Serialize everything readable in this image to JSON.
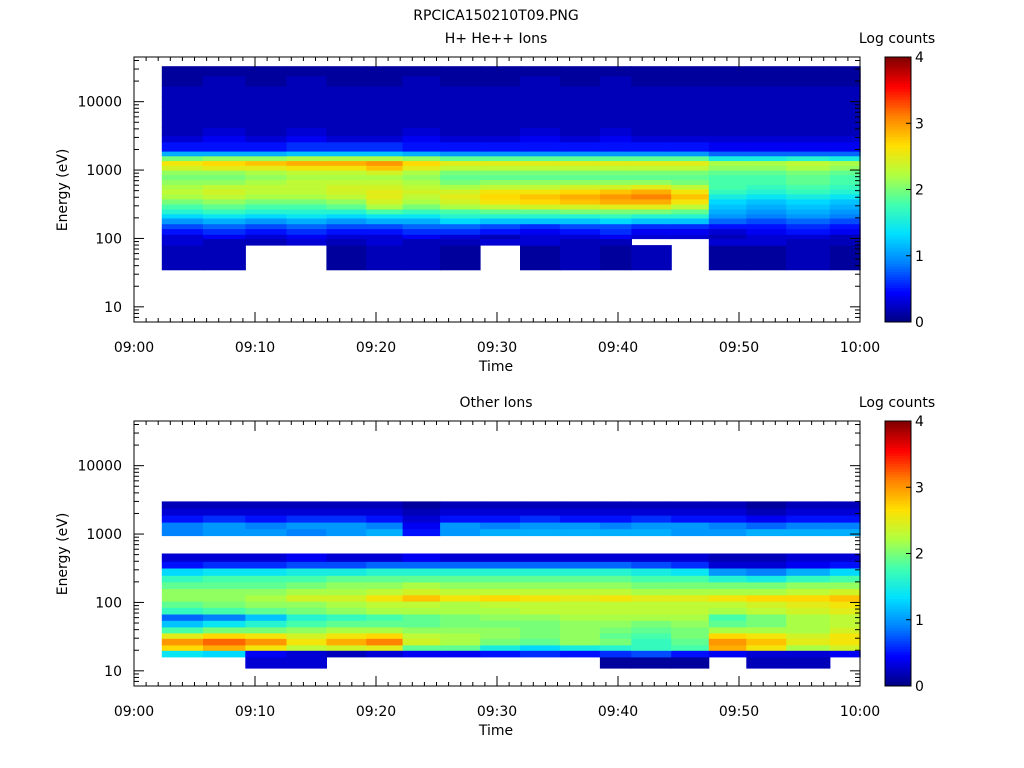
{
  "page": {
    "title": "RPCICA150210T09.PNG"
  },
  "colormap": {
    "stops": [
      "#00007f",
      "#0000ff",
      "#0080ff",
      "#00e0ff",
      "#40ffb0",
      "#b0ff40",
      "#ffe000",
      "#ff8000",
      "#ff0000",
      "#7f0000"
    ]
  },
  "chart_data": [
    {
      "type": "heatmap",
      "title": "H+ He++ Ions",
      "xlabel": "Time",
      "ylabel": "Energy (eV)",
      "x_ticks": [
        "09:00",
        "09:10",
        "09:20",
        "09:30",
        "09:40",
        "09:50",
        "10:00"
      ],
      "x_range_min": [
        0,
        60
      ],
      "y_scale": "log",
      "y_ticks": [
        "10",
        "100",
        "1000",
        "10000"
      ],
      "y_range": [
        6,
        45000
      ],
      "colorbar": {
        "label": "Log counts",
        "range": [
          0,
          4
        ],
        "ticks": [
          "0",
          "1",
          "2",
          "3",
          "4"
        ]
      },
      "time_bins_min": [
        2.3,
        5.7,
        9.2,
        12.6,
        15.9,
        19.2,
        22.2,
        25.3,
        28.6,
        31.9,
        35.2,
        38.5,
        41.1,
        44.4,
        47.5,
        50.6,
        53.9,
        57.5,
        60
      ],
      "energy_bins_ev": [
        11.0,
        35,
        80,
        100,
        115,
        140,
        165,
        200,
        230,
        270,
        320,
        380,
        450,
        530,
        620,
        730,
        860,
        1000,
        1180,
        1380,
        1620,
        1900,
        2600,
        3200,
        4200,
        6000,
        8500,
        12000,
        17000,
        24000,
        33000,
        40000
      ],
      "values": [
        [
          0,
          0,
          0,
          0,
          0,
          0,
          0,
          0,
          0,
          0,
          0,
          0,
          0,
          0,
          0,
          0,
          0,
          0
        ],
        [
          0.2,
          0.2,
          0,
          0,
          0.1,
          0.2,
          0.2,
          0.1,
          0,
          0.1,
          0.2,
          0.1,
          0.2,
          0,
          0.1,
          0.1,
          0.2,
          0.1
        ],
        [
          0.3,
          0.2,
          0.2,
          0.3,
          0.2,
          0.3,
          0.2,
          0.2,
          0.3,
          0.3,
          0.2,
          0.2,
          0,
          0,
          0.3,
          0.3,
          0.2,
          0.2
        ],
        [
          0.3,
          0.4,
          0.3,
          0.4,
          0.3,
          0.3,
          0.4,
          0.3,
          0.2,
          0.3,
          0.3,
          0.4,
          0.3,
          0.3,
          0.2,
          0.3,
          0.3,
          0.2
        ],
        [
          0.5,
          0.6,
          0.5,
          0.6,
          0.5,
          0.5,
          0.6,
          0.6,
          0.5,
          0.4,
          0.5,
          0.6,
          0.4,
          0.4,
          0.3,
          0.4,
          0.5,
          0.4
        ],
        [
          0.7,
          0.8,
          0.7,
          0.8,
          0.7,
          0.7,
          0.8,
          0.8,
          0.7,
          0.6,
          0.7,
          0.7,
          0.6,
          0.6,
          0.5,
          0.5,
          0.6,
          0.5
        ],
        [
          1.0,
          1.1,
          1.0,
          1.1,
          1.0,
          1.1,
          1.1,
          1.3,
          1.2,
          1.2,
          1.2,
          1.3,
          1.2,
          1.2,
          0.8,
          0.7,
          0.8,
          0.7
        ],
        [
          1.3,
          1.4,
          1.3,
          1.4,
          1.3,
          1.4,
          1.4,
          1.6,
          1.6,
          1.6,
          1.6,
          1.7,
          1.6,
          1.6,
          1.0,
          0.9,
          1.0,
          0.9
        ],
        [
          1.6,
          1.7,
          1.6,
          1.6,
          1.6,
          1.8,
          1.7,
          1.8,
          1.9,
          1.9,
          2.0,
          2.0,
          2.0,
          1.9,
          1.1,
          1.0,
          1.1,
          1.0
        ],
        [
          1.8,
          1.9,
          1.8,
          1.8,
          1.9,
          2.2,
          2.0,
          2.2,
          2.3,
          2.4,
          2.4,
          2.5,
          2.5,
          2.3,
          1.2,
          1.1,
          1.2,
          1.1
        ],
        [
          2.0,
          2.1,
          2.0,
          2.0,
          2.1,
          2.4,
          2.2,
          2.4,
          2.6,
          2.7,
          2.8,
          2.9,
          2.9,
          2.6,
          1.3,
          1.2,
          1.3,
          1.2
        ],
        [
          2.2,
          2.3,
          2.2,
          2.2,
          2.3,
          2.5,
          2.3,
          2.5,
          2.7,
          2.8,
          2.9,
          3.0,
          3.1,
          2.8,
          1.5,
          1.4,
          1.5,
          1.4
        ],
        [
          2.3,
          2.4,
          2.3,
          2.3,
          2.4,
          2.5,
          2.4,
          2.4,
          2.6,
          2.6,
          2.7,
          2.8,
          2.9,
          2.6,
          1.7,
          1.6,
          1.7,
          1.6
        ],
        [
          2.2,
          2.3,
          2.3,
          2.3,
          2.4,
          2.4,
          2.3,
          2.2,
          2.3,
          2.3,
          2.4,
          2.4,
          2.5,
          2.3,
          1.8,
          1.7,
          1.8,
          1.7
        ],
        [
          2.1,
          2.1,
          2.2,
          2.3,
          2.3,
          2.3,
          2.2,
          2.0,
          2.1,
          2.1,
          2.1,
          2.1,
          2.1,
          2.0,
          1.8,
          1.8,
          1.9,
          1.8
        ],
        [
          2.0,
          2.0,
          2.1,
          2.2,
          2.2,
          2.2,
          2.1,
          1.9,
          1.9,
          1.9,
          1.9,
          1.9,
          1.9,
          1.9,
          1.8,
          1.8,
          1.9,
          1.8
        ],
        [
          2.1,
          2.1,
          2.2,
          2.3,
          2.3,
          2.4,
          2.2,
          2.0,
          2.0,
          2.0,
          2.0,
          2.0,
          2.0,
          2.0,
          1.9,
          1.9,
          2.0,
          1.9
        ],
        [
          2.4,
          2.5,
          2.5,
          2.6,
          2.6,
          2.8,
          2.5,
          2.3,
          2.3,
          2.3,
          2.3,
          2.3,
          2.3,
          2.3,
          2.1,
          2.1,
          2.2,
          2.1
        ],
        [
          2.6,
          2.7,
          2.8,
          2.9,
          2.9,
          3.0,
          2.7,
          2.5,
          2.5,
          2.5,
          2.5,
          2.5,
          2.5,
          2.5,
          2.2,
          2.2,
          2.3,
          2.2
        ],
        [
          2.0,
          2.1,
          2.1,
          2.2,
          2.2,
          2.2,
          2.1,
          1.9,
          1.9,
          1.9,
          1.9,
          1.9,
          1.9,
          1.9,
          1.5,
          1.5,
          1.6,
          1.5
        ],
        [
          1.1,
          1.1,
          1.1,
          1.2,
          1.2,
          1.2,
          1.1,
          1.0,
          1.0,
          1.0,
          1.0,
          1.0,
          1.0,
          1.0,
          0.8,
          0.8,
          0.8,
          0.8
        ],
        [
          0.5,
          0.5,
          0.5,
          0.6,
          0.6,
          0.6,
          0.5,
          0.5,
          0.5,
          0.5,
          0.5,
          0.5,
          0.5,
          0.5,
          0.4,
          0.4,
          0.4,
          0.4
        ],
        [
          0.3,
          0.4,
          0.3,
          0.4,
          0.3,
          0.3,
          0.4,
          0.3,
          0.3,
          0.4,
          0.3,
          0.4,
          0.3,
          0.3,
          0.3,
          0.3,
          0.3,
          0.3
        ],
        [
          0.2,
          0.3,
          0.2,
          0.3,
          0.2,
          0.2,
          0.3,
          0.2,
          0.2,
          0.3,
          0.2,
          0.3,
          0.2,
          0.2,
          0.2,
          0.2,
          0.2,
          0.2
        ],
        [
          0.2,
          0.2,
          0.2,
          0.2,
          0.2,
          0.2,
          0.2,
          0.2,
          0.2,
          0.2,
          0.2,
          0.2,
          0.2,
          0.2,
          0.2,
          0.2,
          0.2,
          0.2
        ],
        [
          0.2,
          0.2,
          0.2,
          0.2,
          0.2,
          0.2,
          0.2,
          0.2,
          0.2,
          0.2,
          0.2,
          0.2,
          0.2,
          0.2,
          0.2,
          0.2,
          0.2,
          0.2
        ],
        [
          0.2,
          0.2,
          0.2,
          0.2,
          0.2,
          0.2,
          0.2,
          0.2,
          0.2,
          0.2,
          0.2,
          0.2,
          0.2,
          0.2,
          0.2,
          0.2,
          0.2,
          0.2
        ],
        [
          0.2,
          0.2,
          0.2,
          0.2,
          0.2,
          0.2,
          0.2,
          0.2,
          0.2,
          0.2,
          0.2,
          0.2,
          0.2,
          0.2,
          0.2,
          0.2,
          0.2,
          0.2
        ],
        [
          0.1,
          0.2,
          0.1,
          0.2,
          0.1,
          0.1,
          0.2,
          0.1,
          0.1,
          0.2,
          0.1,
          0.2,
          0.1,
          0.1,
          0.1,
          0.1,
          0.1,
          0.1
        ],
        [
          0.1,
          0.1,
          0.1,
          0.1,
          0.1,
          0.1,
          0.1,
          0.1,
          0.1,
          0.1,
          0.1,
          0.1,
          0.1,
          0.1,
          0.1,
          0.1,
          0.1,
          0.1
        ],
        [
          0,
          0,
          0,
          0,
          0,
          0,
          0,
          0,
          0,
          0,
          0,
          0,
          0,
          0,
          0,
          0,
          0,
          0
        ]
      ]
    },
    {
      "type": "heatmap",
      "title": "Other Ions",
      "xlabel": "Time",
      "ylabel": "Energy (eV)",
      "x_ticks": [
        "09:00",
        "09:10",
        "09:20",
        "09:30",
        "09:40",
        "09:50",
        "10:00"
      ],
      "x_range_min": [
        0,
        60
      ],
      "y_scale": "log",
      "y_ticks": [
        "10",
        "100",
        "1000",
        "10000"
      ],
      "y_range": [
        6,
        45000
      ],
      "colorbar": {
        "label": "Log counts",
        "range": [
          0,
          4
        ],
        "ticks": [
          "0",
          "1",
          "2",
          "3",
          "4"
        ]
      },
      "time_bins_min": [
        2.3,
        5.7,
        9.2,
        12.6,
        15.9,
        19.2,
        22.2,
        25.3,
        28.6,
        31.9,
        35.2,
        38.5,
        41.1,
        44.4,
        47.5,
        50.6,
        53.9,
        57.5,
        60
      ],
      "energy_bins_ev": [
        11.0,
        16,
        20,
        24,
        30,
        36,
        44,
        55,
        68,
        85,
        105,
        130,
        160,
        200,
        250,
        320,
        400,
        520,
        700,
        950,
        1200,
        1500,
        1900,
        2400,
        3000
      ],
      "values": [
        [
          0,
          0,
          0.3,
          0.3,
          0,
          0,
          0,
          0,
          0,
          0,
          0,
          0.1,
          0.1,
          0.1,
          0,
          0.2,
          0.2,
          0
        ],
        [
          1.4,
          1.3,
          0.4,
          0.3,
          0.2,
          0.3,
          0.4,
          0.4,
          0.5,
          0.6,
          0.5,
          0.6,
          0.7,
          0.5,
          0.4,
          0.3,
          0.3,
          0.4
        ],
        [
          2.7,
          2.9,
          2.6,
          2.3,
          2.4,
          2.5,
          1.9,
          1.9,
          1.5,
          1.3,
          1.5,
          1.6,
          1.7,
          1.8,
          2.9,
          2.6,
          2.2,
          2.4
        ],
        [
          3.0,
          3.2,
          3.0,
          2.6,
          2.9,
          3.1,
          2.4,
          2.2,
          2.0,
          1.9,
          2.1,
          2.0,
          1.7,
          1.9,
          3.0,
          2.8,
          2.5,
          2.6
        ],
        [
          2.5,
          2.7,
          2.6,
          2.4,
          2.6,
          2.7,
          2.3,
          2.2,
          2.1,
          2.0,
          2.1,
          1.9,
          1.8,
          2.0,
          2.7,
          2.6,
          2.4,
          2.6
        ],
        [
          1.8,
          2.0,
          2.0,
          2.1,
          2.2,
          2.2,
          2.1,
          2.1,
          2.1,
          2.0,
          2.1,
          2.0,
          1.9,
          2.0,
          2.2,
          2.2,
          2.2,
          2.4
        ],
        [
          1.2,
          1.4,
          1.6,
          1.8,
          1.9,
          1.9,
          1.9,
          2.0,
          2.0,
          2.0,
          2.1,
          2.1,
          2.0,
          2.1,
          1.9,
          2.0,
          2.2,
          2.3
        ],
        [
          0.8,
          0.9,
          1.2,
          1.6,
          1.7,
          1.8,
          1.9,
          2.0,
          2.1,
          2.1,
          2.2,
          2.2,
          2.2,
          2.2,
          1.8,
          2.0,
          2.2,
          2.3
        ],
        [
          1.7,
          1.8,
          1.9,
          2.0,
          2.1,
          2.2,
          2.2,
          2.2,
          2.2,
          2.3,
          2.3,
          2.3,
          2.3,
          2.3,
          2.2,
          2.3,
          2.4,
          2.5
        ],
        [
          1.9,
          2.0,
          2.1,
          2.1,
          2.2,
          2.3,
          2.3,
          2.2,
          2.3,
          2.3,
          2.3,
          2.3,
          2.3,
          2.3,
          2.3,
          2.4,
          2.5,
          2.6
        ],
        [
          2.1,
          2.1,
          2.2,
          2.4,
          2.4,
          2.6,
          2.8,
          2.6,
          2.7,
          2.6,
          2.5,
          2.6,
          2.5,
          2.5,
          2.6,
          2.7,
          2.7,
          2.8
        ],
        [
          2.1,
          2.1,
          2.1,
          2.2,
          2.2,
          2.3,
          2.4,
          2.3,
          2.3,
          2.3,
          2.3,
          2.3,
          2.2,
          2.2,
          2.2,
          2.2,
          2.3,
          2.4
        ],
        [
          1.9,
          1.9,
          1.9,
          2.0,
          2.1,
          2.1,
          2.2,
          2.1,
          2.1,
          2.1,
          2.1,
          2.1,
          2.0,
          2.0,
          2.0,
          2.0,
          2.1,
          2.1
        ],
        [
          1.7,
          1.8,
          1.8,
          1.8,
          1.9,
          1.9,
          1.9,
          1.9,
          1.9,
          1.9,
          1.9,
          1.9,
          1.8,
          1.8,
          1.6,
          1.5,
          1.7,
          1.8
        ],
        [
          1.3,
          1.4,
          1.4,
          1.5,
          1.5,
          1.6,
          1.6,
          1.6,
          1.6,
          1.6,
          1.6,
          1.6,
          1.5,
          1.4,
          1.0,
          0.9,
          1.1,
          1.3
        ],
        [
          0.5,
          0.6,
          0.6,
          0.7,
          0.7,
          0.8,
          0.8,
          0.8,
          0.8,
          0.8,
          0.8,
          0.8,
          0.7,
          0.6,
          0.3,
          0.3,
          0.4,
          0.5
        ],
        [
          0.3,
          0.3,
          0.3,
          0.4,
          0.3,
          0.3,
          0.4,
          0.3,
          0.3,
          0.3,
          0.3,
          0.3,
          0.3,
          0.3,
          0.2,
          0.2,
          0.3,
          0.3
        ],
        [
          0,
          0,
          0,
          0,
          0,
          0,
          0,
          0,
          0,
          0,
          0,
          0,
          0,
          0,
          0,
          0,
          0,
          0
        ],
        [
          0,
          0,
          0,
          0,
          0,
          0,
          0,
          0,
          0,
          0,
          0,
          0,
          0,
          0,
          0,
          0,
          0,
          0
        ],
        [
          0.9,
          1.0,
          1.0,
          0.9,
          1.0,
          1.1,
          0.5,
          1.0,
          1.1,
          1.1,
          1.1,
          1.1,
          1.1,
          1.0,
          1.0,
          1.1,
          1.1,
          1.1
        ],
        [
          0.9,
          1.0,
          0.9,
          1.0,
          1.0,
          0.9,
          0.4,
          1.0,
          0.9,
          1.0,
          1.0,
          0.9,
          1.0,
          1.0,
          0.9,
          0.8,
          0.9,
          0.9
        ],
        [
          0.5,
          0.6,
          0.5,
          0.6,
          0.6,
          0.5,
          0.3,
          0.5,
          0.5,
          0.6,
          0.5,
          0.5,
          0.6,
          0.5,
          0.5,
          0.4,
          0.5,
          0.5
        ],
        [
          0.3,
          0.3,
          0.3,
          0.3,
          0.3,
          0.3,
          0.2,
          0.3,
          0.3,
          0.3,
          0.3,
          0.3,
          0.3,
          0.3,
          0.3,
          0.2,
          0.3,
          0.3
        ],
        [
          0.2,
          0.2,
          0.2,
          0.2,
          0.2,
          0.2,
          0.1,
          0.2,
          0.2,
          0.2,
          0.2,
          0.2,
          0.2,
          0.2,
          0.2,
          0.1,
          0.2,
          0.2
        ]
      ]
    }
  ]
}
